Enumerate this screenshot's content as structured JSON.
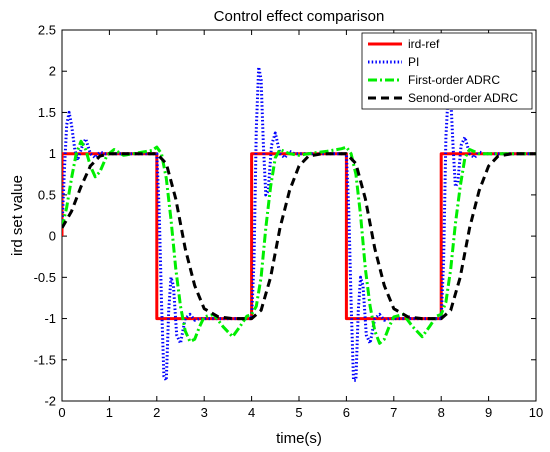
{
  "chart_data": {
    "type": "line",
    "title": "Control effect comparison",
    "xlabel": "time(s)",
    "ylabel": "ird set value",
    "xlim": [
      0,
      10
    ],
    "ylim": [
      -2,
      2.5
    ],
    "xticks": [
      0,
      1,
      2,
      3,
      4,
      5,
      6,
      7,
      8,
      9,
      10
    ],
    "yticks": [
      -2,
      -1.5,
      -1,
      -0.5,
      0,
      0.5,
      1,
      1.5,
      2,
      2.5
    ],
    "xtick_labels": [
      "0",
      "1",
      "2",
      "3",
      "4",
      "5",
      "6",
      "7",
      "8",
      "9",
      "10"
    ],
    "ytick_labels": [
      "-2",
      "-1.5",
      "-1",
      "-0.5",
      "0",
      "0.5",
      "1",
      "1.5",
      "2",
      "2.5"
    ],
    "grid": false,
    "legend_position": "top-right",
    "series": [
      {
        "name": "ird-ref",
        "color": "#ff0000",
        "style": "solid",
        "points": [
          [
            0,
            0
          ],
          [
            0,
            1
          ],
          [
            2,
            1
          ],
          [
            2,
            -1
          ],
          [
            4,
            -1
          ],
          [
            4,
            1
          ],
          [
            6,
            1
          ],
          [
            6,
            -1
          ],
          [
            8,
            -1
          ],
          [
            8,
            1
          ],
          [
            10,
            1
          ]
        ]
      },
      {
        "name": "PI",
        "color": "#0000ff",
        "style": "dotted",
        "points": [
          [
            0,
            0.1
          ],
          [
            0.05,
            0.8
          ],
          [
            0.1,
            1.35
          ],
          [
            0.15,
            1.5
          ],
          [
            0.2,
            1.35
          ],
          [
            0.27,
            1.05
          ],
          [
            0.33,
            0.92
          ],
          [
            0.42,
            1.08
          ],
          [
            0.5,
            1.18
          ],
          [
            0.6,
            1.0
          ],
          [
            0.7,
            0.95
          ],
          [
            0.8,
            1.02
          ],
          [
            0.9,
            1.0
          ],
          [
            1.0,
            1.0
          ],
          [
            2.0,
            1.0
          ],
          [
            2.05,
            0.3
          ],
          [
            2.1,
            -0.8
          ],
          [
            2.15,
            -1.7
          ],
          [
            2.2,
            -1.75
          ],
          [
            2.25,
            -0.9
          ],
          [
            2.3,
            -0.5
          ],
          [
            2.35,
            -0.6
          ],
          [
            2.42,
            -1.2
          ],
          [
            2.5,
            -1.3
          ],
          [
            2.6,
            -1.0
          ],
          [
            2.7,
            -0.95
          ],
          [
            2.8,
            -1.02
          ],
          [
            2.9,
            -1.0
          ],
          [
            4.0,
            -1.0
          ],
          [
            4.05,
            -0.3
          ],
          [
            4.1,
            1.3
          ],
          [
            4.15,
            2.05
          ],
          [
            4.2,
            1.9
          ],
          [
            4.25,
            1.1
          ],
          [
            4.3,
            0.5
          ],
          [
            4.35,
            0.55
          ],
          [
            4.42,
            1.1
          ],
          [
            4.5,
            1.25
          ],
          [
            4.6,
            1.0
          ],
          [
            4.7,
            0.95
          ],
          [
            4.8,
            1.03
          ],
          [
            4.9,
            1.0
          ],
          [
            6.0,
            1.0
          ],
          [
            6.05,
            0.3
          ],
          [
            6.1,
            -0.8
          ],
          [
            6.15,
            -1.75
          ],
          [
            6.2,
            -1.75
          ],
          [
            6.25,
            -0.9
          ],
          [
            6.3,
            -0.5
          ],
          [
            6.35,
            -0.6
          ],
          [
            6.42,
            -1.2
          ],
          [
            6.5,
            -1.3
          ],
          [
            6.6,
            -1.0
          ],
          [
            6.7,
            -0.95
          ],
          [
            6.8,
            -1.02
          ],
          [
            6.9,
            -1.0
          ],
          [
            8.0,
            -1.0
          ],
          [
            8.05,
            -0.3
          ],
          [
            8.1,
            1.2
          ],
          [
            8.15,
            1.75
          ],
          [
            8.2,
            1.7
          ],
          [
            8.25,
            1.1
          ],
          [
            8.3,
            0.6
          ],
          [
            8.35,
            0.65
          ],
          [
            8.42,
            1.1
          ],
          [
            8.5,
            1.2
          ],
          [
            8.6,
            1.0
          ],
          [
            8.7,
            0.95
          ],
          [
            8.8,
            1.02
          ],
          [
            8.9,
            1.0
          ],
          [
            10,
            1.0
          ]
        ]
      },
      {
        "name": "First-order ADRC",
        "color": "#00ee00",
        "style": "dashdot",
        "points": [
          [
            0,
            0.1
          ],
          [
            0.1,
            0.35
          ],
          [
            0.2,
            0.7
          ],
          [
            0.3,
            1.0
          ],
          [
            0.4,
            1.15
          ],
          [
            0.5,
            1.05
          ],
          [
            0.6,
            0.85
          ],
          [
            0.7,
            0.72
          ],
          [
            0.8,
            0.78
          ],
          [
            0.95,
            0.98
          ],
          [
            1.1,
            1.05
          ],
          [
            1.3,
            0.98
          ],
          [
            1.5,
            1.0
          ],
          [
            1.9,
            1.04
          ],
          [
            2.0,
            1.08
          ],
          [
            2.1,
            1.0
          ],
          [
            2.2,
            0.7
          ],
          [
            2.3,
            0.2
          ],
          [
            2.4,
            -0.4
          ],
          [
            2.5,
            -0.85
          ],
          [
            2.6,
            -1.15
          ],
          [
            2.7,
            -1.28
          ],
          [
            2.8,
            -1.25
          ],
          [
            2.9,
            -1.1
          ],
          [
            3.0,
            -0.98
          ],
          [
            3.2,
            -0.95
          ],
          [
            3.4,
            -1.1
          ],
          [
            3.6,
            -1.22
          ],
          [
            3.75,
            -1.1
          ],
          [
            3.9,
            -0.97
          ],
          [
            4.0,
            -0.95
          ],
          [
            4.1,
            -0.85
          ],
          [
            4.2,
            -0.5
          ],
          [
            4.3,
            0.1
          ],
          [
            4.4,
            0.6
          ],
          [
            4.5,
            0.95
          ],
          [
            4.6,
            1.05
          ],
          [
            4.8,
            1.0
          ],
          [
            5.0,
            0.98
          ],
          [
            5.2,
            1.0
          ],
          [
            5.6,
            1.03
          ],
          [
            5.9,
            1.06
          ],
          [
            6.0,
            1.08
          ],
          [
            6.1,
            1.0
          ],
          [
            6.2,
            0.75
          ],
          [
            6.3,
            0.25
          ],
          [
            6.4,
            -0.4
          ],
          [
            6.5,
            -0.85
          ],
          [
            6.6,
            -1.15
          ],
          [
            6.7,
            -1.3
          ],
          [
            6.8,
            -1.25
          ],
          [
            6.9,
            -1.1
          ],
          [
            7.0,
            -0.98
          ],
          [
            7.2,
            -0.95
          ],
          [
            7.4,
            -1.1
          ],
          [
            7.6,
            -1.22
          ],
          [
            7.75,
            -1.1
          ],
          [
            7.9,
            -0.97
          ],
          [
            8.0,
            -0.95
          ],
          [
            8.1,
            -0.8
          ],
          [
            8.2,
            -0.4
          ],
          [
            8.3,
            0.15
          ],
          [
            8.4,
            0.6
          ],
          [
            8.5,
            0.95
          ],
          [
            8.6,
            1.05
          ],
          [
            8.8,
            1.0
          ],
          [
            9.2,
            1.0
          ],
          [
            10,
            1.0
          ]
        ]
      },
      {
        "name": "Senond-order ADRC",
        "color": "#000000",
        "style": "dashed",
        "points": [
          [
            0,
            0.1
          ],
          [
            0.2,
            0.3
          ],
          [
            0.4,
            0.6
          ],
          [
            0.6,
            0.85
          ],
          [
            0.8,
            0.97
          ],
          [
            1.0,
            1.0
          ],
          [
            2.0,
            1.0
          ],
          [
            2.2,
            0.88
          ],
          [
            2.4,
            0.45
          ],
          [
            2.6,
            -0.15
          ],
          [
            2.8,
            -0.6
          ],
          [
            3.0,
            -0.88
          ],
          [
            3.3,
            -0.98
          ],
          [
            3.6,
            -1.0
          ],
          [
            4.0,
            -1.0
          ],
          [
            4.2,
            -0.9
          ],
          [
            4.4,
            -0.5
          ],
          [
            4.6,
            0.1
          ],
          [
            4.8,
            0.55
          ],
          [
            5.0,
            0.85
          ],
          [
            5.2,
            0.97
          ],
          [
            5.5,
            1.0
          ],
          [
            6.0,
            1.0
          ],
          [
            6.2,
            0.88
          ],
          [
            6.4,
            0.45
          ],
          [
            6.6,
            -0.15
          ],
          [
            6.8,
            -0.6
          ],
          [
            7.0,
            -0.88
          ],
          [
            7.3,
            -0.98
          ],
          [
            7.6,
            -1.0
          ],
          [
            8.0,
            -1.0
          ],
          [
            8.2,
            -0.9
          ],
          [
            8.4,
            -0.5
          ],
          [
            8.6,
            0.1
          ],
          [
            8.8,
            0.55
          ],
          [
            9.0,
            0.85
          ],
          [
            9.2,
            0.97
          ],
          [
            9.5,
            1.0
          ],
          [
            10,
            1.0
          ]
        ]
      }
    ]
  }
}
